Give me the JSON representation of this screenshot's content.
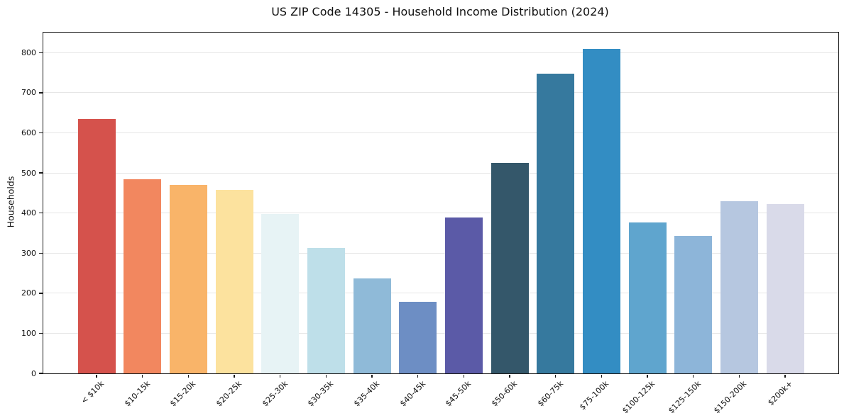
{
  "chart_data": {
    "type": "bar",
    "title": "US ZIP Code 14305 - Household Income Distribution (2024)",
    "xlabel": "",
    "ylabel": "Households",
    "categories": [
      "< $10k",
      "$10-15k",
      "$15-20k",
      "$20-25k",
      "$25-30k",
      "$30-35k",
      "$35-40k",
      "$40-45k",
      "$45-50k",
      "$50-60k",
      "$60-75k",
      "$75-100k",
      "$100-125k",
      "$125-150k",
      "$150-200k",
      "$200k+"
    ],
    "values": [
      635,
      484,
      470,
      458,
      397,
      312,
      236,
      178,
      388,
      525,
      748,
      810,
      376,
      342,
      430,
      423
    ],
    "bar_colors": [
      "#d5524c",
      "#f2875f",
      "#f9b469",
      "#fce29e",
      "#e7f3f5",
      "#bedfe9",
      "#8fbad8",
      "#6d8ec4",
      "#5b5aa7",
      "#34576a",
      "#36799e",
      "#338dc3",
      "#5fa5ce",
      "#8db5d9",
      "#b6c7e0",
      "#d9dae9"
    ],
    "ylim": [
      0,
      850
    ],
    "yticks": [
      0,
      100,
      200,
      300,
      400,
      500,
      600,
      700,
      800
    ],
    "grid": "horizontal",
    "gridline_color": "#e6e6e6",
    "axis_color": "#1a1a1a",
    "background_color": "#ffffff",
    "legend": "none",
    "x_tick_rotation_deg": 45
  }
}
